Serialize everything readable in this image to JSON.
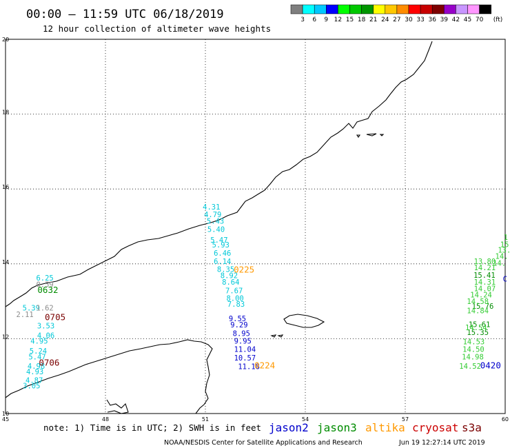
{
  "header": {
    "title": "00:00 – 11:59 UTC 06/18/2019",
    "subtitle": "12 hour collection of altimeter wave heights"
  },
  "color_scale": {
    "colors": [
      "#7f7f7f",
      "#00ffff",
      "#00c8ff",
      "#0000ff",
      "#00ff00",
      "#00c800",
      "#009600",
      "#ffff00",
      "#ffc800",
      "#ff8c00",
      "#ff0000",
      "#c80000",
      "#7d0000",
      "#9600c8",
      "#c896ff",
      "#ff96ff",
      "#000000"
    ],
    "labels": [
      "3",
      "6",
      "9",
      "12",
      "15",
      "18",
      "21",
      "24",
      "27",
      "30",
      "33",
      "36",
      "39",
      "42",
      "45",
      "70"
    ],
    "unit": "(ft)"
  },
  "chart_data": {
    "type": "scatter",
    "title": "00:00 – 11:59 UTC 06/18/2019",
    "subtitle": "12 hour collection of altimeter wave heights",
    "xlim": [
      45,
      60
    ],
    "ylim": [
      10,
      20
    ],
    "x_ticks": [
      "45",
      "48",
      "51",
      "54",
      "57",
      "60"
    ],
    "y_ticks": [
      "10",
      "12",
      "14",
      "16",
      "18",
      "20"
    ],
    "grid": true,
    "series": [
      {
        "name": "jason2",
        "color": "#0000cc",
        "points": []
      },
      {
        "name": "jason3",
        "color": "#008c00",
        "points": []
      },
      {
        "name": "altika",
        "color": "#ff9900",
        "points": []
      },
      {
        "name": "cryosat",
        "color": "#cc0000",
        "points": []
      },
      {
        "name": "s3a",
        "color": "#7a0000",
        "points": []
      }
    ],
    "tracks": [
      {
        "color": "#00c8d8",
        "points": [
          {
            "x": 45.92,
            "y": 13.55,
            "v": "6.25"
          },
          {
            "x": 45.51,
            "y": 12.75,
            "v": "5.39"
          },
          {
            "x": 45.95,
            "y": 12.27,
            "v": "3.53"
          },
          {
            "x": 45.95,
            "y": 12.02,
            "v": "4.06"
          },
          {
            "x": 45.75,
            "y": 11.87,
            "v": "4.95"
          },
          {
            "x": 45.72,
            "y": 11.6,
            "v": "5.24"
          },
          {
            "x": 45.69,
            "y": 11.45,
            "v": "5.47"
          },
          {
            "x": 45.66,
            "y": 11.2,
            "v": "4.98"
          },
          {
            "x": 45.62,
            "y": 11.05,
            "v": "4.93"
          },
          {
            "x": 45.6,
            "y": 10.82,
            "v": "4.87"
          },
          {
            "x": 45.52,
            "y": 10.67,
            "v": "3.05"
          },
          {
            "x": 50.92,
            "y": 15.45,
            "v": "4.31"
          },
          {
            "x": 50.96,
            "y": 15.25,
            "v": "4.79"
          },
          {
            "x": 51.04,
            "y": 15.07,
            "v": "5.43"
          },
          {
            "x": 51.06,
            "y": 14.85,
            "v": "5.40"
          },
          {
            "x": 51.15,
            "y": 14.57,
            "v": "5.47"
          },
          {
            "x": 51.2,
            "y": 14.44,
            "v": "5.93"
          },
          {
            "x": 51.25,
            "y": 14.22,
            "v": "6.46"
          },
          {
            "x": 51.25,
            "y": 14.0,
            "v": "6.14"
          },
          {
            "x": 51.35,
            "y": 13.78,
            "v": "8.35"
          },
          {
            "x": 51.45,
            "y": 13.62,
            "v": "8.92"
          },
          {
            "x": 51.5,
            "y": 13.44,
            "v": "8.64"
          },
          {
            "x": 51.6,
            "y": 13.21,
            "v": "7.67"
          },
          {
            "x": 51.63,
            "y": 13.01,
            "v": "8.00"
          },
          {
            "x": 51.66,
            "y": 12.85,
            "v": "7.83"
          }
        ]
      },
      {
        "color": "#8c8c8c",
        "points": [
          {
            "x": 45.92,
            "y": 13.38,
            "v": "0.59"
          },
          {
            "x": 45.92,
            "y": 12.75,
            "v": "1.62"
          },
          {
            "x": 45.32,
            "y": 12.58,
            "v": "2.11"
          }
        ]
      },
      {
        "color": "#0000cc",
        "points": [
          {
            "x": 51.7,
            "y": 12.47,
            "v": "9.55"
          },
          {
            "x": 51.75,
            "y": 12.3,
            "v": "9.29"
          },
          {
            "x": 51.82,
            "y": 12.07,
            "v": "8.95"
          },
          {
            "x": 51.86,
            "y": 11.87,
            "v": "9.95"
          },
          {
            "x": 51.86,
            "y": 11.65,
            "v": "11.04"
          },
          {
            "x": 51.86,
            "y": 11.42,
            "v": "10.57"
          },
          {
            "x": 51.98,
            "y": 11.19,
            "v": "11.18"
          }
        ]
      },
      {
        "color": "#008c00",
        "points": [
          {
            "x": 59.05,
            "y": 13.63,
            "v": "15.41"
          },
          {
            "x": 59.0,
            "y": 12.8,
            "v": "15.76"
          },
          {
            "x": 58.9,
            "y": 12.31,
            "v": "15.61"
          },
          {
            "x": 58.85,
            "y": 12.1,
            "v": "15.35"
          }
        ]
      },
      {
        "color": "#33cc33",
        "points": [
          {
            "x": 59.06,
            "y": 14.0,
            "v": "13.80"
          },
          {
            "x": 59.06,
            "y": 13.83,
            "v": "14.21"
          },
          {
            "x": 59.06,
            "y": 13.44,
            "v": "14.31"
          },
          {
            "x": 59.06,
            "y": 13.27,
            "v": "14.07"
          },
          {
            "x": 58.95,
            "y": 13.1,
            "v": "14.24"
          },
          {
            "x": 58.85,
            "y": 12.93,
            "v": "14.58"
          },
          {
            "x": 58.85,
            "y": 12.68,
            "v": "14.84"
          },
          {
            "x": 58.8,
            "y": 12.23,
            "v": "14.54"
          },
          {
            "x": 58.73,
            "y": 11.85,
            "v": "14.53"
          },
          {
            "x": 58.72,
            "y": 11.65,
            "v": "14.50"
          },
          {
            "x": 58.7,
            "y": 11.45,
            "v": "14.98"
          },
          {
            "x": 58.62,
            "y": 11.2,
            "v": "14.52"
          }
        ]
      }
    ],
    "pass_times": [
      {
        "text": "0632",
        "x": 45.96,
        "y": 13.22,
        "color": "#008c00"
      },
      {
        "text": "0225",
        "x": 51.85,
        "y": 13.77,
        "color": "#ff9900"
      },
      {
        "text": "0705",
        "x": 46.18,
        "y": 12.5,
        "color": "#7a0000"
      },
      {
        "text": "0706",
        "x": 46.0,
        "y": 11.28,
        "color": "#7a0000"
      },
      {
        "text": "0224",
        "x": 52.47,
        "y": 11.21,
        "color": "#ff9900"
      },
      {
        "text": "0420",
        "x": 59.25,
        "y": 11.21,
        "color": "#0000cc"
      }
    ],
    "edge_values": [
      {
        "text": "1",
        "x": 59.95,
        "y": 14.64,
        "color": "#33cc33"
      },
      {
        "text": "15",
        "x": 59.85,
        "y": 14.45,
        "color": "#33cc33"
      },
      {
        "text": "13.",
        "x": 59.78,
        "y": 14.3,
        "color": "#33cc33"
      },
      {
        "text": "14.",
        "x": 59.7,
        "y": 14.13,
        "color": "#33cc33"
      },
      {
        "text": "14.",
        "x": 59.63,
        "y": 13.95,
        "color": "#33cc33"
      },
      {
        "text": "C",
        "x": 59.93,
        "y": 13.53,
        "color": "#0000cc"
      }
    ]
  },
  "footer": {
    "note": "note: 1) Time is in UTC; 2) SWH is in feet",
    "satellites": [
      {
        "name": "jason2",
        "color": "#0000cc"
      },
      {
        "name": "jason3",
        "color": "#008c00"
      },
      {
        "name": "altika",
        "color": "#ff9900"
      },
      {
        "name": "cryosat",
        "color": "#cc0000"
      },
      {
        "name": "s3a",
        "color": "#7a0000"
      }
    ],
    "credit": "NOAA/NESDIS Center for Satellite Applications and Research",
    "timestamp": "Jun 19 12:27:14 UTC 2019"
  }
}
